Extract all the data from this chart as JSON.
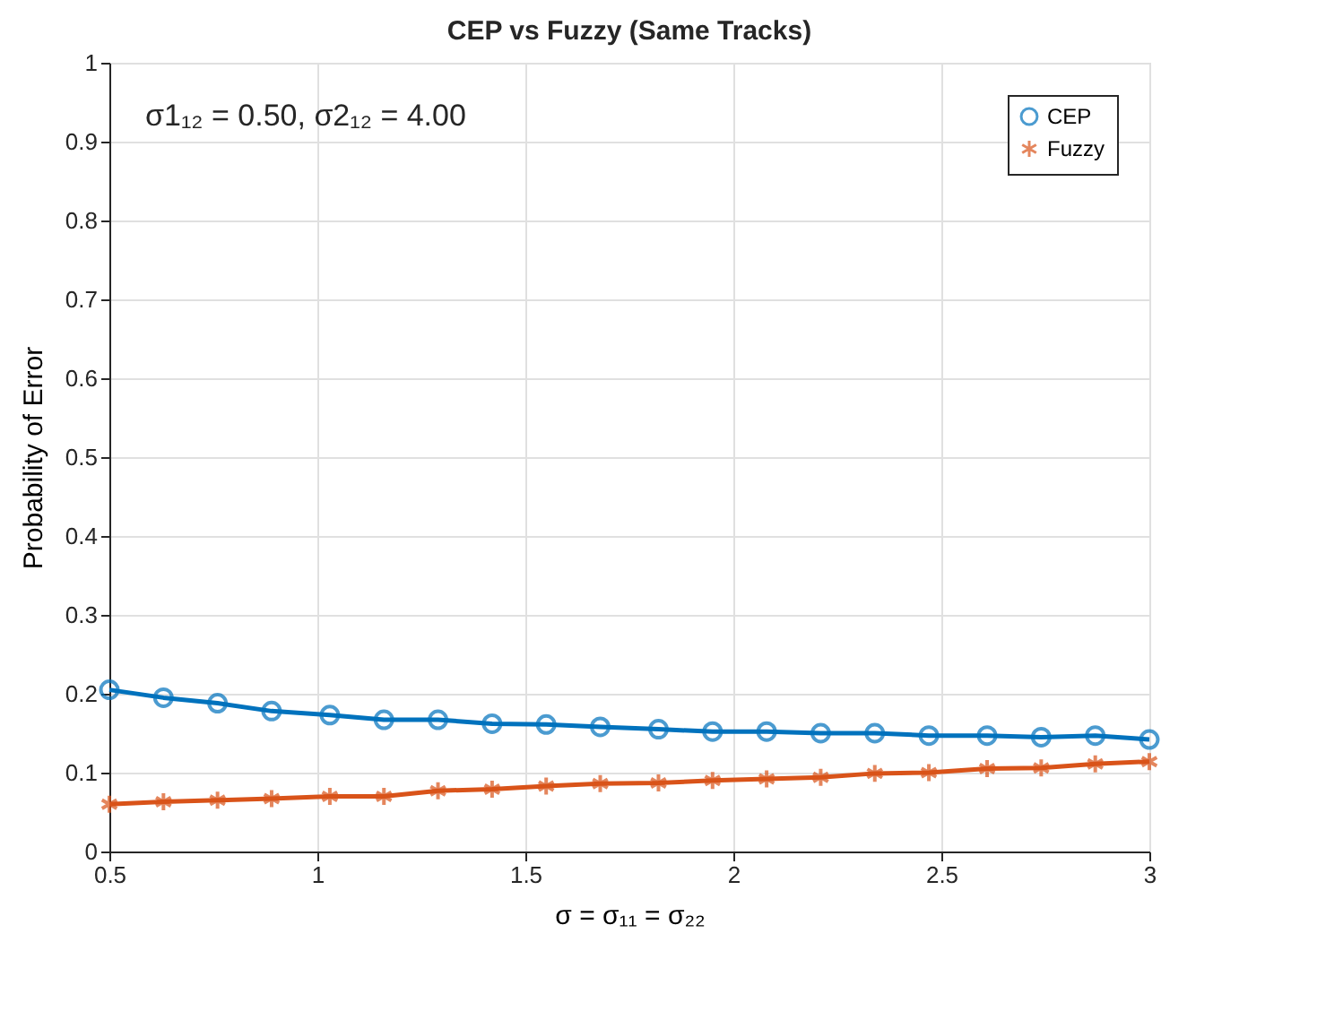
{
  "chart_data": {
    "type": "line",
    "title": "CEP vs Fuzzy (Same Tracks)",
    "xlabel": "σ = σ₁₁ = σ₂₂",
    "ylabel": "Probability of Error",
    "x": [
      0.5,
      0.63,
      0.76,
      0.89,
      1.03,
      1.16,
      1.29,
      1.42,
      1.55,
      1.68,
      1.82,
      1.95,
      2.08,
      2.21,
      2.34,
      2.47,
      2.61,
      2.74,
      2.87,
      3
    ],
    "series": [
      {
        "name": "CEP",
        "color": "#0072bd",
        "marker": "circle",
        "values": [
          0.205,
          0.195,
          0.188,
          0.178,
          0.173,
          0.167,
          0.167,
          0.162,
          0.161,
          0.158,
          0.155,
          0.152,
          0.152,
          0.15,
          0.15,
          0.147,
          0.147,
          0.145,
          0.147,
          0.142
        ]
      },
      {
        "name": "Fuzzy",
        "color": "#d95319",
        "marker": "cross",
        "values": [
          0.06,
          0.063,
          0.065,
          0.067,
          0.07,
          0.07,
          0.077,
          0.079,
          0.083,
          0.086,
          0.087,
          0.09,
          0.092,
          0.094,
          0.099,
          0.1,
          0.105,
          0.106,
          0.111,
          0.114
        ]
      }
    ],
    "xlim": [
      0.5,
      3
    ],
    "xticks": [
      0.5,
      1,
      1.5,
      2,
      2.5,
      3
    ],
    "ylim": [
      0,
      1
    ],
    "yticks": [
      0,
      0.1,
      0.2,
      0.3,
      0.4,
      0.5,
      0.6,
      0.7,
      0.8,
      0.9,
      1
    ],
    "annotations": [
      "σ1₁₂ = 0.50, σ2₁₂ = 4.00"
    ],
    "grid": true,
    "legend": "top right",
    "line_style": "solid"
  }
}
